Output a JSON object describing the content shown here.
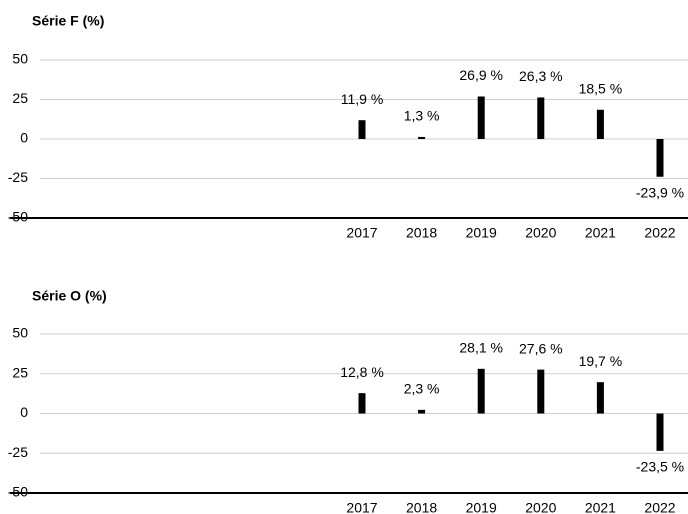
{
  "chart_data": [
    {
      "type": "bar",
      "title": "Série F (%)",
      "categories": [
        "2017",
        "2018",
        "2019",
        "2020",
        "2021",
        "2022"
      ],
      "values": [
        11.9,
        1.3,
        26.9,
        26.3,
        18.5,
        -23.9
      ],
      "value_labels": [
        "11,9 %",
        "1,3 %",
        "26,9 %",
        "26,3 %",
        "18,5 %",
        "-23,9 %"
      ],
      "color": "#000000",
      "ylim": [
        -50,
        50
      ],
      "yticks": [
        -50,
        -25,
        0,
        25,
        50
      ],
      "grid": true
    },
    {
      "type": "bar",
      "title": "Série O (%)",
      "categories": [
        "2017",
        "2018",
        "2019",
        "2020",
        "2021",
        "2022"
      ],
      "values": [
        12.8,
        2.3,
        28.1,
        27.6,
        19.7,
        -23.5
      ],
      "value_labels": [
        "12,8 %",
        "2,3 %",
        "28,1 %",
        "27,6 %",
        "19,7 %",
        "-23,5 %"
      ],
      "color": "#000000",
      "ylim": [
        -50,
        50
      ],
      "yticks": [
        -50,
        -25,
        0,
        25,
        50
      ],
      "grid": true
    }
  ]
}
